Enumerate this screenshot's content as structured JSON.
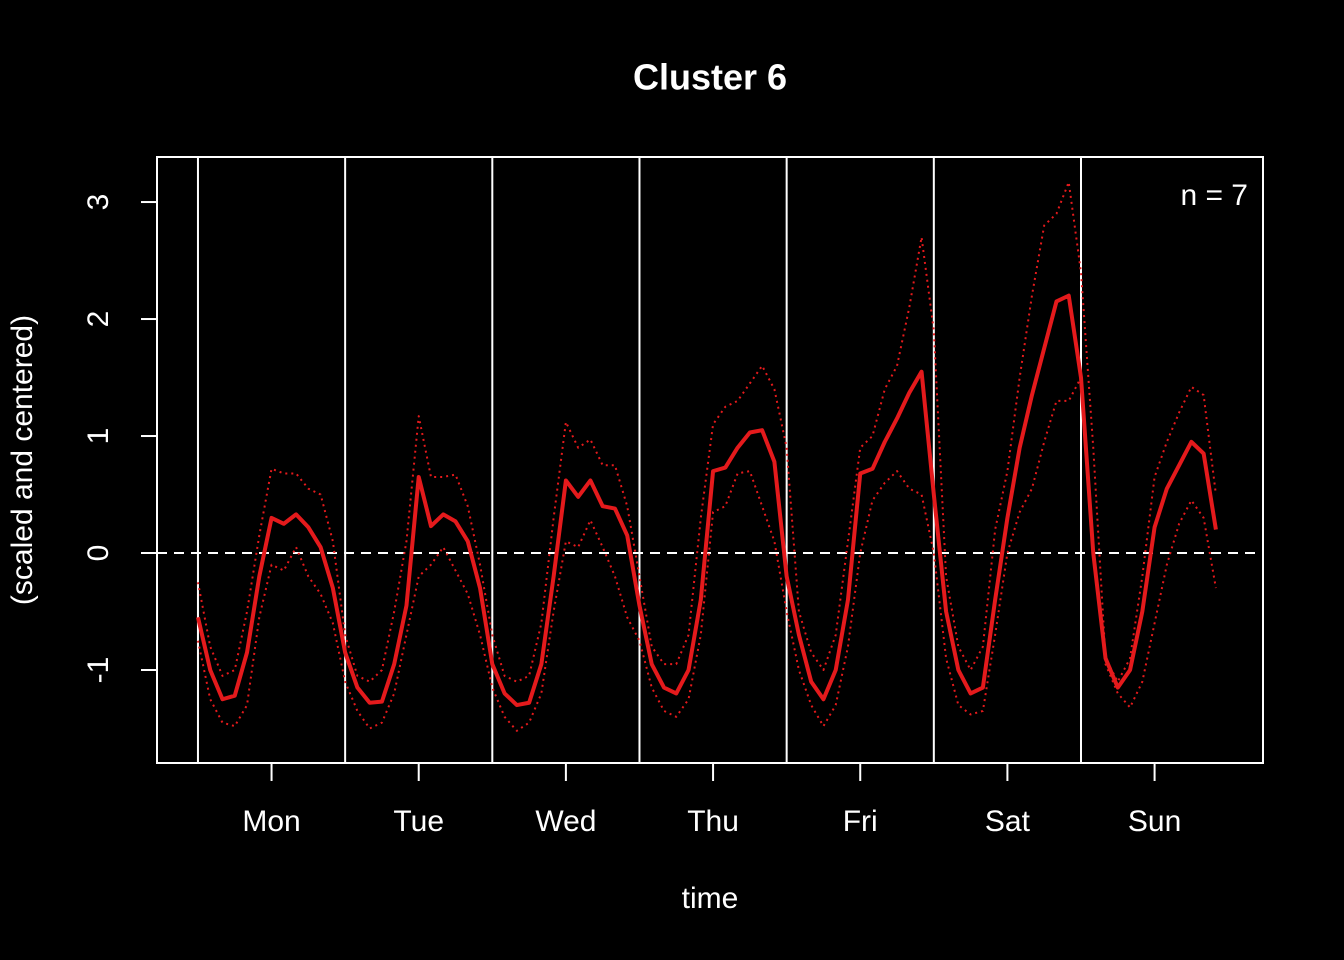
{
  "chart_data": {
    "type": "line",
    "title": "Cluster 6",
    "xlabel": "time",
    "ylabel": "(scaled and centered)",
    "annotation": "n = 7",
    "xlim": [
      -6.68,
      173.68
    ],
    "ylim": [
      -1.795,
      3.385
    ],
    "yticks": [
      -1,
      0,
      1,
      2,
      3
    ],
    "xticks": [
      {
        "value": 12,
        "label": "Mon"
      },
      {
        "value": 36,
        "label": "Tue"
      },
      {
        "value": 60,
        "label": "Wed"
      },
      {
        "value": 84,
        "label": "Thu"
      },
      {
        "value": 108,
        "label": "Fri"
      },
      {
        "value": 132,
        "label": "Sat"
      },
      {
        "value": 156,
        "label": "Sun"
      }
    ],
    "vlines": [
      0,
      24,
      48,
      72,
      96,
      120,
      144
    ],
    "hline": 0,
    "x": [
      0,
      2,
      4,
      6,
      8,
      10,
      12,
      14,
      16,
      18,
      20,
      22,
      24,
      26,
      28,
      30,
      32,
      34,
      36,
      38,
      40,
      42,
      44,
      46,
      48,
      50,
      52,
      54,
      56,
      58,
      60,
      62,
      64,
      66,
      68,
      70,
      72,
      74,
      76,
      78,
      80,
      82,
      84,
      86,
      88,
      90,
      92,
      94,
      96,
      98,
      100,
      102,
      104,
      106,
      108,
      110,
      112,
      114,
      116,
      118,
      120,
      122,
      124,
      126,
      128,
      130,
      132,
      134,
      136,
      138,
      140,
      142,
      144,
      146,
      148,
      150,
      152,
      154,
      156,
      158,
      160,
      162,
      164,
      166
    ],
    "series": [
      {
        "color": "#e41a1c",
        "style": "dotted",
        "values": [
          -0.25,
          -0.8,
          -1.05,
          -1.0,
          -0.5,
          0.15,
          0.72,
          0.68,
          0.68,
          0.55,
          0.5,
          0.1,
          -0.7,
          -1.05,
          -1.1,
          -1.0,
          -0.5,
          0.1,
          1.17,
          0.65,
          0.65,
          0.67,
          0.4,
          -0.1,
          -0.7,
          -1.05,
          -1.1,
          -1.05,
          -0.6,
          0.3,
          1.12,
          0.9,
          0.97,
          0.75,
          0.75,
          0.4,
          -0.2,
          -0.8,
          -0.95,
          -0.95,
          -0.7,
          0.3,
          1.1,
          1.25,
          1.3,
          1.45,
          1.6,
          1.4,
          0.9,
          -0.5,
          -0.85,
          -1.0,
          -0.7,
          0.1,
          0.9,
          1.0,
          1.4,
          1.6,
          2.1,
          2.7,
          1.9,
          -0.2,
          -0.8,
          -1.0,
          -0.8,
          0.2,
          0.7,
          1.5,
          2.2,
          2.8,
          2.9,
          3.17,
          2.4,
          0.9,
          -0.9,
          -1.1,
          -0.9,
          -0.2,
          0.65,
          0.95,
          1.2,
          1.42,
          1.35,
          0.5
        ]
      },
      {
        "color": "#e41a1c",
        "style": "dotted",
        "values": [
          -0.75,
          -1.25,
          -1.45,
          -1.48,
          -1.3,
          -0.55,
          -0.1,
          -0.15,
          0.05,
          -0.2,
          -0.35,
          -0.6,
          -1.1,
          -1.35,
          -1.5,
          -1.45,
          -1.2,
          -0.7,
          -0.2,
          -0.1,
          0.05,
          -0.15,
          -0.35,
          -0.7,
          -1.15,
          -1.4,
          -1.52,
          -1.45,
          -1.2,
          -0.5,
          0.1,
          0.05,
          0.28,
          0.05,
          -0.2,
          -0.55,
          -0.75,
          -1.15,
          -1.35,
          -1.4,
          -1.25,
          -0.7,
          0.35,
          0.4,
          0.68,
          0.7,
          0.4,
          0.1,
          -0.5,
          -1.0,
          -1.3,
          -1.48,
          -1.3,
          -0.8,
          0.0,
          0.45,
          0.6,
          0.7,
          0.55,
          0.5,
          0.0,
          -0.9,
          -1.3,
          -1.38,
          -1.35,
          -0.7,
          0.0,
          0.35,
          0.55,
          0.95,
          1.3,
          1.3,
          1.5,
          0.0,
          -0.95,
          -1.2,
          -1.32,
          -1.1,
          -0.6,
          -0.1,
          0.25,
          0.45,
          0.3,
          -0.3
        ]
      },
      {
        "color": "#e41a1c",
        "style": "solid",
        "values": [
          -0.55,
          -1.0,
          -1.25,
          -1.22,
          -0.85,
          -0.2,
          0.3,
          0.25,
          0.33,
          0.22,
          0.05,
          -0.3,
          -0.85,
          -1.15,
          -1.28,
          -1.27,
          -0.95,
          -0.45,
          0.65,
          0.23,
          0.33,
          0.27,
          0.1,
          -0.3,
          -0.95,
          -1.2,
          -1.3,
          -1.28,
          -0.95,
          -0.2,
          0.62,
          0.48,
          0.62,
          0.4,
          0.38,
          0.15,
          -0.45,
          -0.95,
          -1.15,
          -1.2,
          -1.0,
          -0.4,
          0.7,
          0.73,
          0.9,
          1.03,
          1.05,
          0.78,
          -0.2,
          -0.7,
          -1.1,
          -1.25,
          -1.0,
          -0.4,
          0.68,
          0.72,
          0.95,
          1.15,
          1.37,
          1.55,
          0.5,
          -0.5,
          -1.0,
          -1.2,
          -1.15,
          -0.4,
          0.3,
          0.9,
          1.35,
          1.75,
          2.15,
          2.2,
          1.5,
          0.0,
          -0.9,
          -1.15,
          -1.0,
          -0.5,
          0.22,
          0.55,
          0.75,
          0.95,
          0.85,
          0.2
        ]
      }
    ]
  }
}
